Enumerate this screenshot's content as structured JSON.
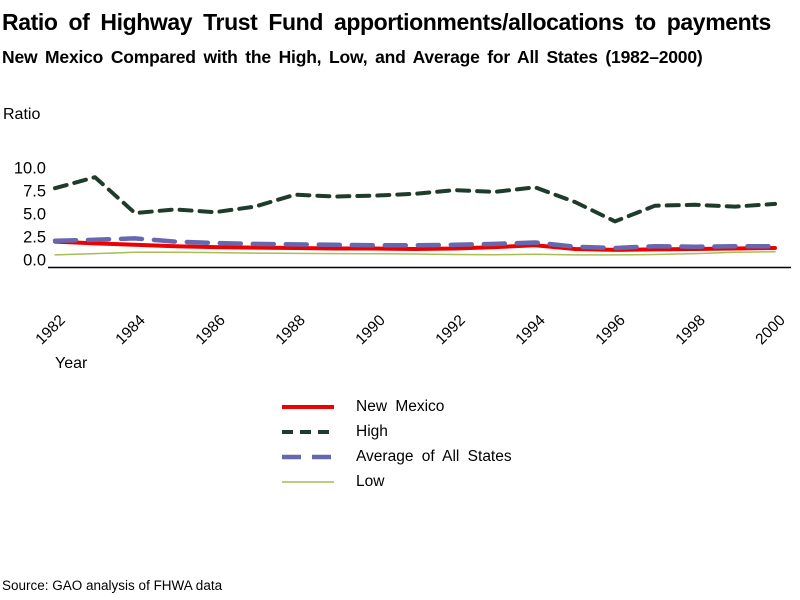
{
  "source_note": "Source: GAO analysis of FHWA data",
  "chart_data": {
    "type": "line",
    "title": "Ratio of Highway Trust Fund apportionments/allocations to payments",
    "subtitle": "New Mexico Compared with the High, Low, and Average for All States (1982–2000)",
    "xlabel": "Year",
    "ylabel": "Ratio",
    "x": [
      1982,
      1983,
      1984,
      1985,
      1986,
      1987,
      1988,
      1989,
      1990,
      1991,
      1992,
      1993,
      1994,
      1995,
      1996,
      1997,
      1998,
      1999,
      2000
    ],
    "x_tick_labels": [
      "1982",
      "1984",
      "1986",
      "1988",
      "1990",
      "1992",
      "1994",
      "1996",
      "1998",
      "2000"
    ],
    "y_ticks": [
      0,
      2.5,
      5,
      7.5,
      10
    ],
    "y_tick_labels": [
      "0.0",
      "2.5",
      "5.0",
      "7.5",
      "10.0"
    ],
    "ylim": [
      0,
      10
    ],
    "grid": false,
    "legend_position": "bottom-center",
    "axis_color": "#000000",
    "series": [
      {
        "name": "New Mexico",
        "color": "#ee0000",
        "style": "solid",
        "width": 4,
        "dash": "",
        "values": [
          2.0,
          1.8,
          1.65,
          1.5,
          1.4,
          1.35,
          1.3,
          1.25,
          1.25,
          1.2,
          1.25,
          1.4,
          1.6,
          1.2,
          1.1,
          1.15,
          1.2,
          1.25,
          1.3
        ]
      },
      {
        "name": "High",
        "color": "#1e3b2c",
        "style": "dashed",
        "width": 4,
        "dash": "12 8",
        "values": [
          7.8,
          9.0,
          5.1,
          5.5,
          5.2,
          5.8,
          7.1,
          6.9,
          7.0,
          7.2,
          7.6,
          7.4,
          7.9,
          6.3,
          4.2,
          5.9,
          6.0,
          5.8,
          6.1
        ]
      },
      {
        "name": "Average of All States",
        "color": "#6767b0",
        "style": "dashed",
        "width": 4.5,
        "dash": "21 12",
        "values": [
          2.1,
          2.2,
          2.35,
          2.0,
          1.85,
          1.75,
          1.7,
          1.65,
          1.6,
          1.6,
          1.65,
          1.75,
          1.9,
          1.45,
          1.3,
          1.5,
          1.45,
          1.5,
          1.5
        ]
      },
      {
        "name": "Low",
        "color": "#a9bc55",
        "style": "solid",
        "width": 1.5,
        "dash": "",
        "values": [
          0.55,
          0.7,
          0.85,
          0.85,
          0.8,
          0.75,
          0.72,
          0.7,
          0.68,
          0.65,
          0.6,
          0.58,
          0.62,
          0.55,
          0.55,
          0.6,
          0.7,
          0.85,
          0.9
        ]
      }
    ]
  }
}
